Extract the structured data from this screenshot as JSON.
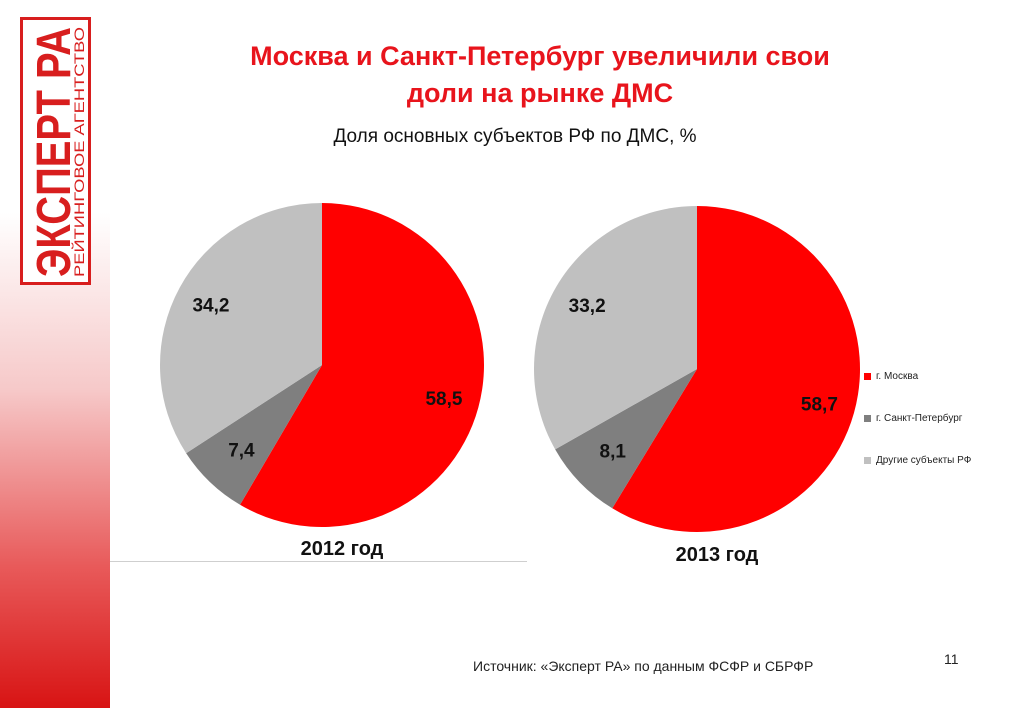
{
  "logo": {
    "brand": "ЭКСПЕРТ РА",
    "tagline": "РЕЙТИНГОВОЕ АГЕНТСТВО"
  },
  "title_line1": "Москва и Санкт-Петербург увеличили свои",
  "title_line2": "доли на рынке ДМС",
  "subtitle": "Доля основных субъектов РФ по ДМС, %",
  "source": "Источник: «Эксперт РА» по данным ФСФР и СБРФР",
  "page_number": "11",
  "colors": {
    "moscow": "#ff0000",
    "spb": "#7f7f7f",
    "other": "#c0c0c0",
    "accent": "#e8141c"
  },
  "chart_data": [
    {
      "type": "pie",
      "title": "2012 год",
      "labels": [
        "г. Москва",
        "г. Санкт-Петербург",
        "Другие субъекты РФ"
      ],
      "values": [
        58.5,
        7.4,
        34.2
      ],
      "data_labels": [
        "58,5",
        "7,4",
        "34,2"
      ]
    },
    {
      "type": "pie",
      "title": "2013 год",
      "labels": [
        "г. Москва",
        "г. Санкт-Петербург",
        "Другие субъекты РФ"
      ],
      "values": [
        58.7,
        8.1,
        33.2
      ],
      "data_labels": [
        "58,7",
        "8,1",
        "33,2"
      ],
      "legend": "right"
    }
  ]
}
